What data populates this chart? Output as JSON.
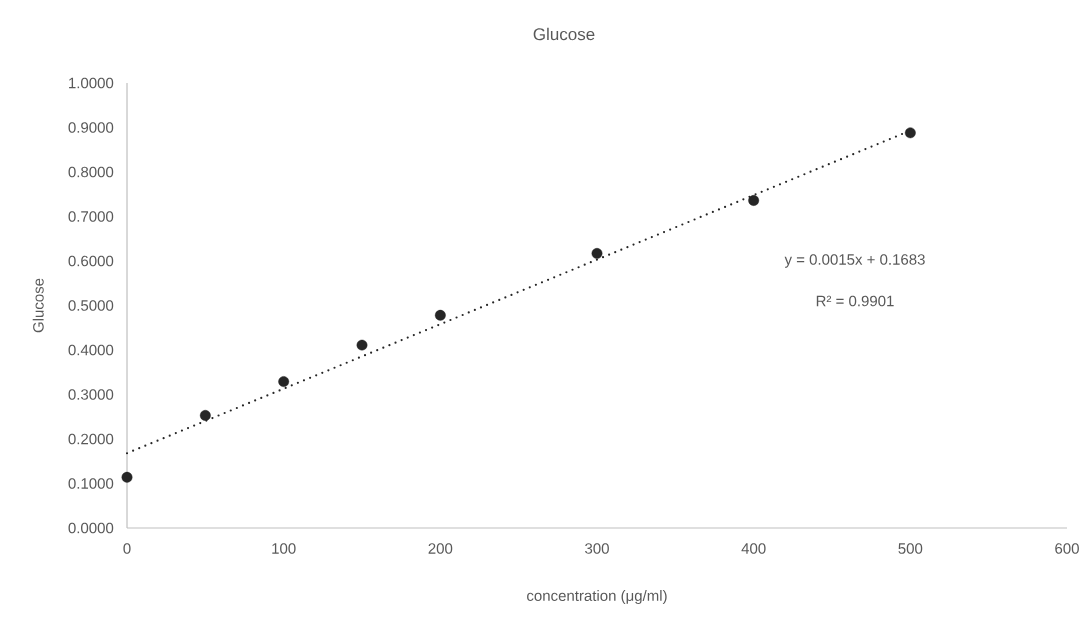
{
  "chart_data": {
    "type": "scatter",
    "title": "Glucose",
    "xlabel": "concentration (μg/ml)",
    "ylabel": "Glucose",
    "xlim": [
      0,
      600
    ],
    "xticks": [
      0,
      100,
      200,
      300,
      400,
      500,
      600
    ],
    "ylim": [
      0,
      1
    ],
    "yticks": [
      {
        "value": 0,
        "label": "0.0000"
      },
      {
        "value": 0.1,
        "label": "0.1000"
      },
      {
        "value": 0.2,
        "label": "0.2000"
      },
      {
        "value": 0.3,
        "label": "0.3000"
      },
      {
        "value": 0.4,
        "label": "0.4000"
      },
      {
        "value": 0.5,
        "label": "0.5000"
      },
      {
        "value": 0.6,
        "label": "0.6000"
      },
      {
        "value": 0.7,
        "label": "0.7000"
      },
      {
        "value": 0.8,
        "label": "0.8000"
      },
      {
        "value": 0.9,
        "label": "0.9000"
      },
      {
        "value": 1,
        "label": "1.0000"
      }
    ],
    "grid": false,
    "series": [
      {
        "color": "#262626",
        "marker": "circle",
        "x": [
          0,
          50,
          100,
          150,
          200,
          300,
          400,
          500
        ],
        "values": [
          0.114,
          0.253,
          0.329,
          0.411,
          0.478,
          0.617,
          0.736,
          0.888
        ]
      },
      {
        "type": "line",
        "color": "#262626",
        "line_style": "dotted",
        "marker": "none",
        "x": [
          0,
          500
        ],
        "values": [
          0.168,
          0.893
        ]
      }
    ],
    "annotations": [
      "y = 0.0015x + 0.1683",
      "R² = 0.9901"
    ]
  }
}
